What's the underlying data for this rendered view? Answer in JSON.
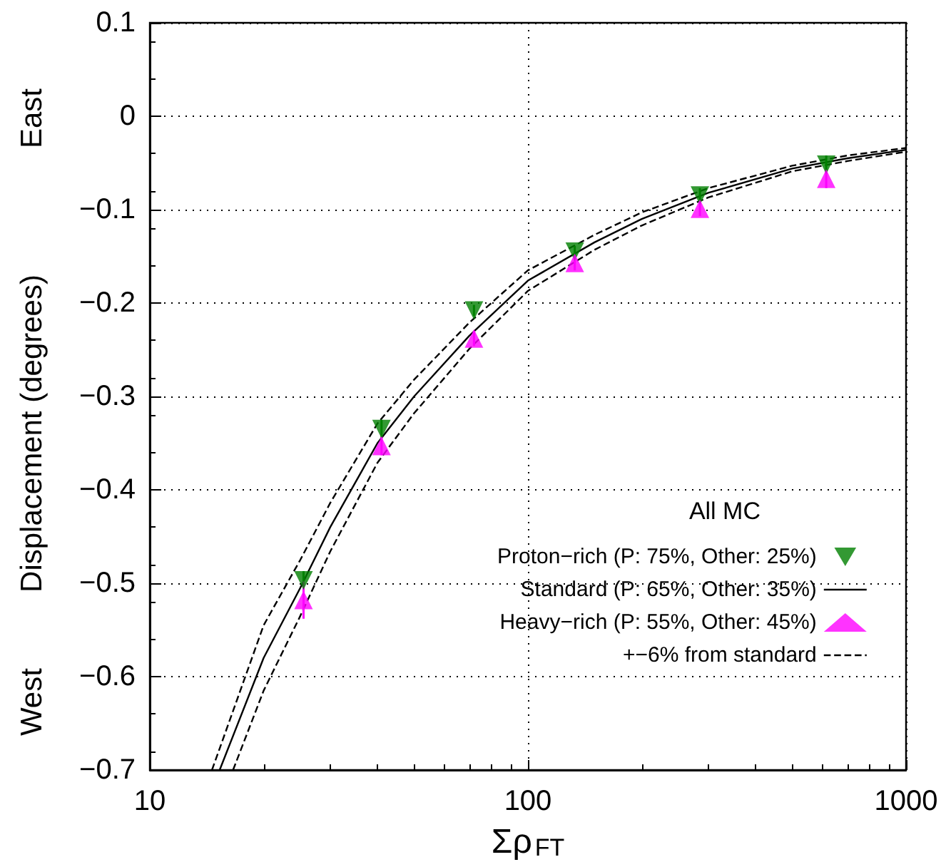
{
  "chart_data": {
    "type": "scatter",
    "xlabel": "Σρ$_{FT}$",
    "ylabel": "Displacement (degrees)",
    "legend_title": "All MC",
    "annotations": [
      "East",
      "West"
    ],
    "log": "x",
    "xlim": [
      10,
      1000
    ],
    "xticks": [
      10,
      100,
      1000
    ],
    "ylim": [
      -0.7,
      0.1
    ],
    "yticks": [
      {
        "value": -0.7,
        "label": "−0.7"
      },
      {
        "value": -0.6,
        "label": "−0.6"
      },
      {
        "value": -0.5,
        "label": "−0.5"
      },
      {
        "value": -0.4,
        "label": "−0.4"
      },
      {
        "value": -0.3,
        "label": "−0.3"
      },
      {
        "value": -0.2,
        "label": "−0.2"
      },
      {
        "value": -0.1,
        "label": "−0.1"
      },
      0,
      0.1
    ],
    "grid": true,
    "legend": "bottom right",
    "series": [
      {
        "name": "Proton−rich (P: 75%, Other: 25%)",
        "type": "scatter",
        "marker": "triangle-down",
        "color": "#008000",
        "x": [
          25.5,
          41,
          72,
          133,
          285,
          615
        ],
        "values": [
          -0.497,
          -0.335,
          -0.208,
          -0.145,
          -0.085,
          -0.052
        ],
        "errors": [
          0.01,
          0.01,
          0.006,
          0.006,
          0.008,
          0.01
        ]
      },
      {
        "name": "Standard (P: 65%, Other: 35%)",
        "type": "line",
        "marker": "none",
        "line_style": "solid",
        "color": "#000000",
        "x": [
          15.3,
          20,
          25,
          30,
          40,
          50,
          70,
          100,
          150,
          200,
          300,
          500,
          700,
          1000
        ],
        "values": [
          -0.7,
          -0.58,
          -0.505,
          -0.44,
          -0.35,
          -0.3,
          -0.235,
          -0.176,
          -0.135,
          -0.11,
          -0.082,
          -0.056,
          -0.045,
          -0.036
        ]
      },
      {
        "name": "Heavy−rich (P: 55%, Other: 45%)",
        "type": "scatter",
        "marker": "triangle",
        "color": "#ff00ff",
        "x": [
          25.5,
          41,
          72,
          133,
          285,
          615
        ],
        "values": [
          -0.518,
          -0.353,
          -0.238,
          -0.157,
          -0.099,
          -0.067
        ],
        "errors": [
          0.02,
          0.01,
          0.008,
          0.008,
          0.008,
          0.01
        ]
      },
      {
        "name": "+−6% from standard",
        "type": "line",
        "marker": "none",
        "line_style": "dashed",
        "color": "#000000",
        "x": [
          14.6,
          20,
          25,
          30,
          40,
          50,
          70,
          100,
          150,
          200,
          300,
          500,
          700,
          1000
        ],
        "values": [
          -0.7,
          -0.545,
          -0.475,
          -0.414,
          -0.329,
          -0.282,
          -0.221,
          -0.165,
          -0.127,
          -0.103,
          -0.077,
          -0.053,
          -0.042,
          -0.034
        ]
      },
      {
        "type": "line",
        "marker": "none",
        "line_style": "dashed",
        "color": "#000000",
        "x": [
          16.6,
          20,
          25,
          30,
          40,
          50,
          70,
          100,
          150,
          200,
          300,
          500,
          700,
          1000
        ],
        "values": [
          -0.7,
          -0.615,
          -0.535,
          -0.466,
          -0.371,
          -0.318,
          -0.249,
          -0.187,
          -0.143,
          -0.117,
          -0.087,
          -0.059,
          -0.048,
          -0.038
        ]
      }
    ]
  }
}
